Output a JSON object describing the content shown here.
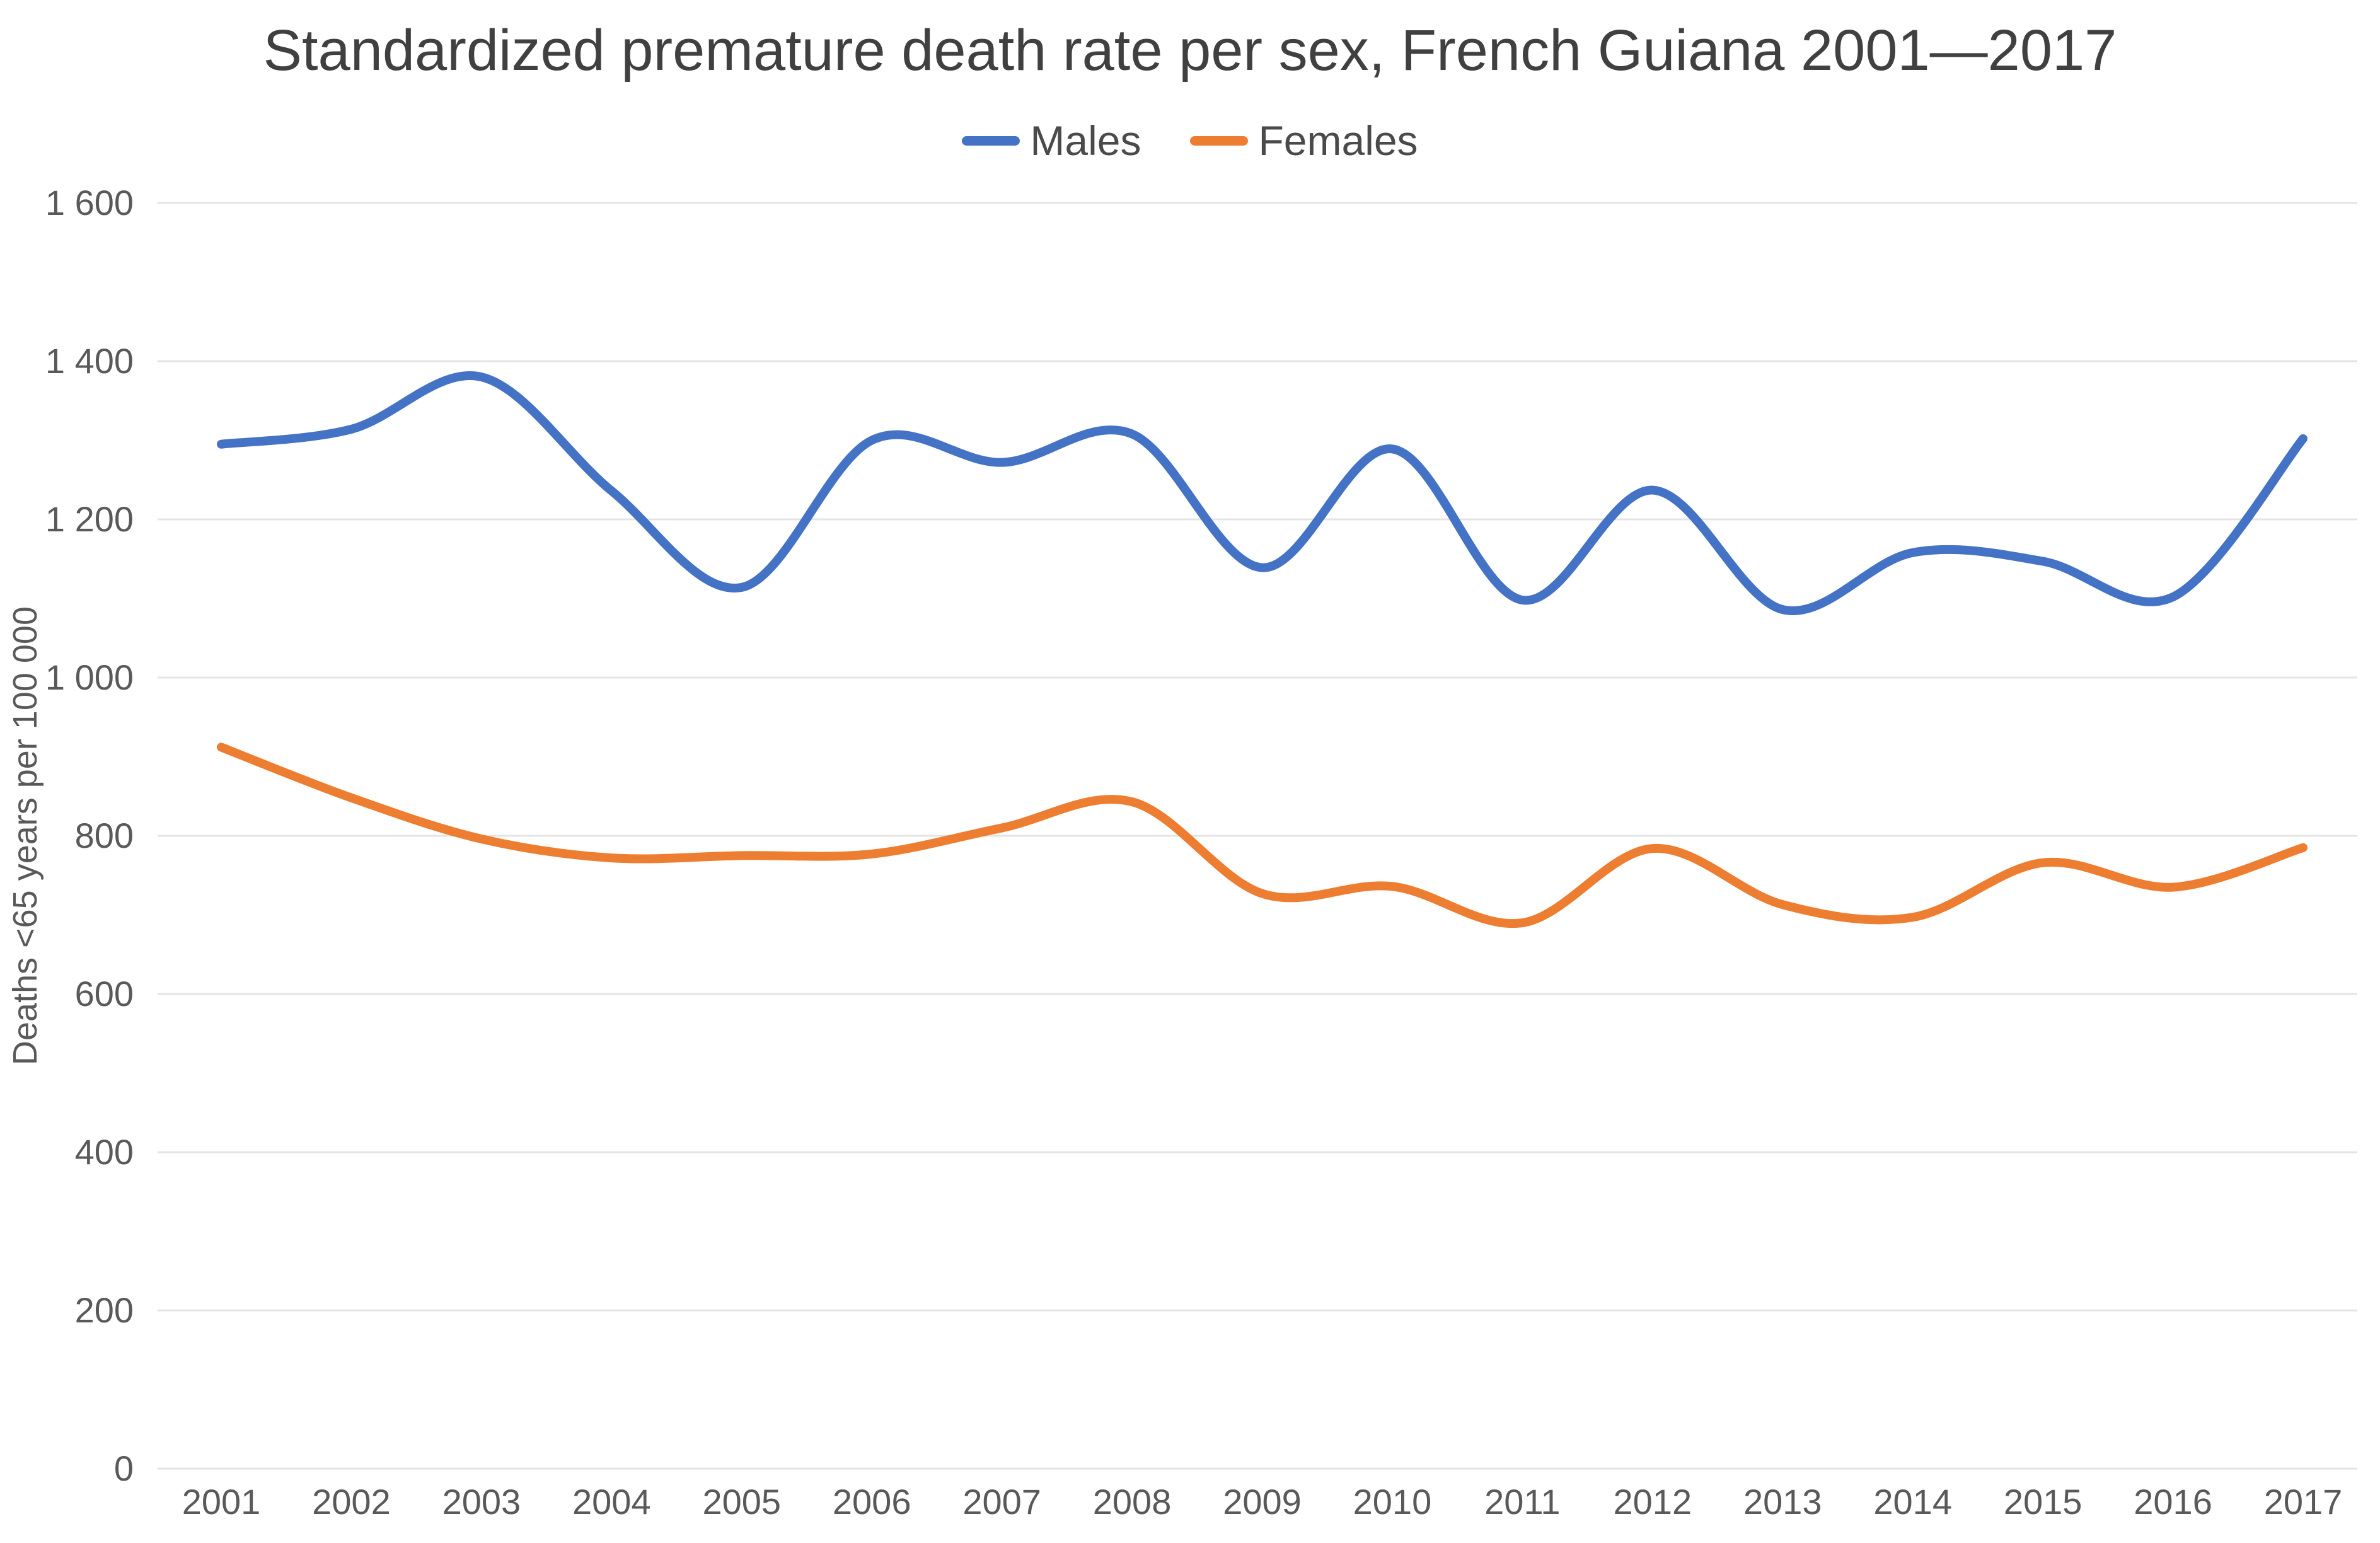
{
  "chart_data": {
    "type": "line",
    "smooth": true,
    "title": "Standardized premature death rate per sex, French Guiana 2001—2017",
    "xlabel": "",
    "ylabel": "Deaths <65 years per 100 000",
    "categories": [
      "2001",
      "2002",
      "2003",
      "2004",
      "2005",
      "2006",
      "2007",
      "2008",
      "2009",
      "2010",
      "2011",
      "2012",
      "2013",
      "2014",
      "2015",
      "2016",
      "2017"
    ],
    "series": [
      {
        "name": "Males",
        "color": "#4472C4",
        "values": [
          1295,
          1314,
          1380,
          1236,
          1114,
          1300,
          1272,
          1308,
          1139,
          1289,
          1098,
          1237,
          1086,
          1158,
          1147,
          1102,
          1302
        ]
      },
      {
        "name": "Females",
        "color": "#ED7D31",
        "values": [
          912,
          848,
          796,
          772,
          775,
          777,
          810,
          843,
          727,
          736,
          690,
          784,
          713,
          697,
          766,
          735,
          785
        ]
      }
    ],
    "ylim": [
      0,
      1600
    ],
    "y_tick_step": 200,
    "y_ticks": [
      "0",
      "200",
      "400",
      "600",
      "800",
      "1 000",
      "1 200",
      "1 400",
      "1 600"
    ],
    "grid": true,
    "legend_position": "top"
  },
  "style": {
    "grid_color": "#E4E4E4",
    "title_color": "#404040",
    "legend_text_color": "#4a4a4a",
    "axis_text_color": "#595959"
  }
}
